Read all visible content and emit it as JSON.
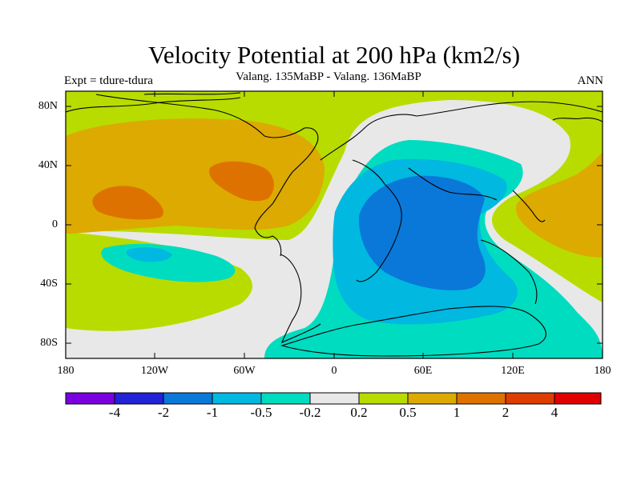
{
  "title": "Velocity Potential at 200 hPa (km2/s)",
  "subtitle": "Valang.  135MaBP - Valang.  136MaBP",
  "left_label": "Expt = tdure-tdura",
  "right_label": "ANN",
  "lat_labels": [
    "80N",
    "40N",
    "0",
    "40S",
    "80S"
  ],
  "lon_labels": [
    "180",
    "120W",
    "60W",
    "0",
    "60E",
    "120E",
    "180"
  ],
  "colorbar": {
    "labels": [
      "-4",
      "-2",
      "-1",
      "-0.5",
      "-0.2",
      "0.2",
      "0.5",
      "1",
      "2",
      "4"
    ],
    "colors": [
      "#7a00e0",
      "#2222d6",
      "#0a78d8",
      "#00b8e0",
      "#00dcc0",
      "#e8e8e8",
      "#b8dc00",
      "#dcaa00",
      "#de7200",
      "#de3c00",
      "#e00000"
    ]
  },
  "palette": {
    "neg_strong": "#0a78d8",
    "neg_mid": "#00b8e0",
    "neg_weak": "#00dcc0",
    "neutral": "#e8e8e8",
    "pos_weak": "#b8dc00",
    "pos_mid": "#dcaa00",
    "pos_strong": "#de7200"
  }
}
